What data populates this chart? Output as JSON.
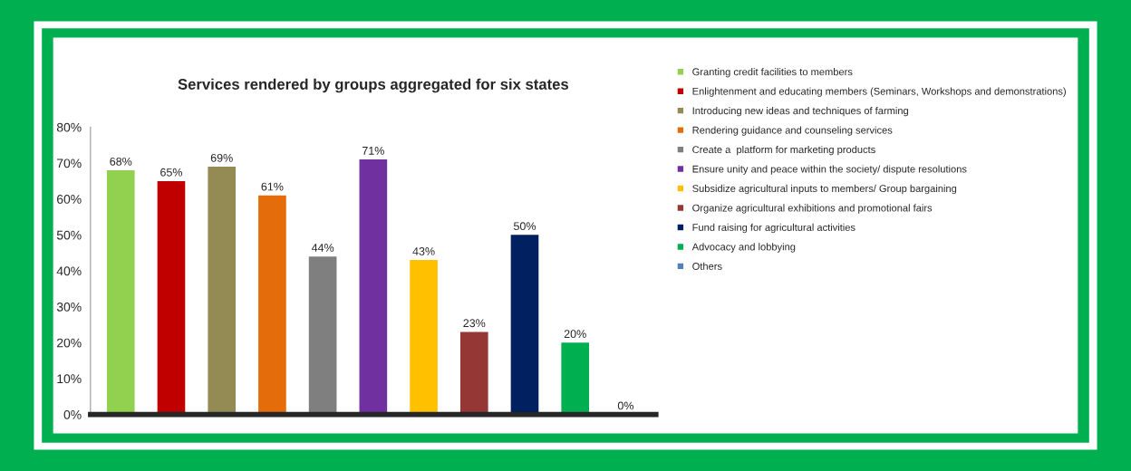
{
  "chart_data": {
    "type": "bar",
    "title": "Services rendered by groups aggregated for six states",
    "categories": [
      null,
      null,
      null,
      null,
      null,
      null,
      null,
      null,
      null,
      null,
      null
    ],
    "series": [
      {
        "name": "Granting credit facilities to members",
        "color": "#92d050",
        "values": [
          68,
          null,
          null,
          null,
          null,
          null,
          null,
          null,
          null,
          null,
          null
        ],
        "value_labels": [
          "68%",
          null,
          null,
          null,
          null,
          null,
          null,
          null,
          null,
          null,
          null
        ]
      },
      {
        "name": "Enlightenment and educating members (Seminars, Workshops and demonstrations)",
        "color": "#c00000",
        "values": [
          null,
          65,
          null,
          null,
          null,
          null,
          null,
          null,
          null,
          null,
          null
        ],
        "value_labels": [
          null,
          "65%",
          null,
          null,
          null,
          null,
          null,
          null,
          null,
          null,
          null
        ]
      },
      {
        "name": "Introducing new ideas and techniques of farming",
        "color": "#948a54",
        "values": [
          null,
          null,
          69,
          null,
          null,
          null,
          null,
          null,
          null,
          null,
          null
        ],
        "value_labels": [
          null,
          null,
          "69%",
          null,
          null,
          null,
          null,
          null,
          null,
          null,
          null
        ]
      },
      {
        "name": "Rendering guidance and counseling services",
        "color": "#e46c0a",
        "values": [
          null,
          null,
          null,
          61,
          null,
          null,
          null,
          null,
          null,
          null,
          null
        ],
        "value_labels": [
          null,
          null,
          null,
          "61%",
          null,
          null,
          null,
          null,
          null,
          null,
          null
        ]
      },
      {
        "name": "Create a  platform for marketing products",
        "color": "#7f7f7f",
        "values": [
          null,
          null,
          null,
          null,
          44,
          null,
          null,
          null,
          null,
          null,
          null
        ],
        "value_labels": [
          null,
          null,
          null,
          null,
          "44%",
          null,
          null,
          null,
          null,
          null,
          null
        ]
      },
      {
        "name": "Ensure unity and peace within the society/ dispute resolutions",
        "color": "#7030a0",
        "values": [
          null,
          null,
          null,
          null,
          null,
          71,
          null,
          null,
          null,
          null,
          null
        ],
        "value_labels": [
          null,
          null,
          null,
          null,
          null,
          "71%",
          null,
          null,
          null,
          null,
          null
        ]
      },
      {
        "name": "Subsidize agricultural inputs to members/ Group bargaining",
        "color": "#ffc000",
        "values": [
          null,
          null,
          null,
          null,
          null,
          null,
          43,
          null,
          null,
          null,
          null
        ],
        "value_labels": [
          null,
          null,
          null,
          null,
          null,
          null,
          "43%",
          null,
          null,
          null,
          null
        ]
      },
      {
        "name": "Organize agricultural exhibitions and promotional fairs",
        "color": "#953735",
        "values": [
          null,
          null,
          null,
          null,
          null,
          null,
          null,
          23,
          null,
          null,
          null
        ],
        "value_labels": [
          null,
          null,
          null,
          null,
          null,
          null,
          null,
          "23%",
          null,
          null,
          null
        ]
      },
      {
        "name": "Fund raising for agricultural activities",
        "color": "#002060",
        "values": [
          null,
          null,
          null,
          null,
          null,
          null,
          null,
          null,
          50,
          null,
          null
        ],
        "value_labels": [
          null,
          null,
          null,
          null,
          null,
          null,
          null,
          null,
          "50%",
          null,
          null
        ]
      },
      {
        "name": "Advocacy and lobbying",
        "color": "#00b050",
        "values": [
          null,
          null,
          null,
          null,
          null,
          null,
          null,
          null,
          null,
          20,
          null
        ],
        "value_labels": [
          null,
          null,
          null,
          null,
          null,
          null,
          null,
          null,
          null,
          "20%",
          null
        ]
      },
      {
        "name": "Others",
        "color": "#4f81bd",
        "values": [
          null,
          null,
          null,
          null,
          null,
          null,
          null,
          null,
          null,
          null,
          0
        ],
        "value_labels": [
          null,
          null,
          null,
          null,
          null,
          null,
          null,
          null,
          null,
          null,
          "0%"
        ]
      }
    ],
    "ylim": [
      0,
      80
    ],
    "yticks": [
      {
        "value": 0,
        "label": "0%"
      },
      {
        "value": 10,
        "label": "10%"
      },
      {
        "value": 20,
        "label": "20%"
      },
      {
        "value": 30,
        "label": "30%"
      },
      {
        "value": 40,
        "label": "40%"
      },
      {
        "value": 50,
        "label": "50%"
      },
      {
        "value": 60,
        "label": "60%"
      },
      {
        "value": 70,
        "label": "70%"
      },
      {
        "value": 80,
        "label": "80%"
      }
    ],
    "tick_labels": "y",
    "grid": false,
    "legend": "right"
  }
}
